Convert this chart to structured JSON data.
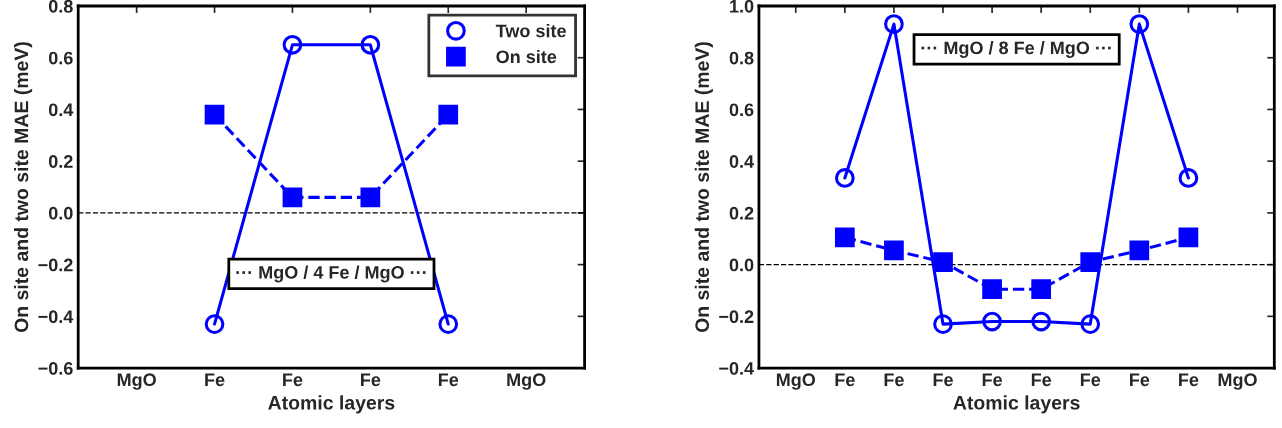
{
  "chart_data": [
    {
      "type": "line",
      "xlabel": "Atomic layers",
      "ylabel": "On site and two site MAE (meV)",
      "categories": [
        "MgO",
        "Fe",
        "Fe",
        "Fe",
        "Fe",
        "MgO"
      ],
      "series": [
        {
          "name": "Two site",
          "color": "#0000ff",
          "values": [
            null,
            -0.43,
            0.65,
            0.65,
            -0.43,
            null
          ],
          "marker": "circle",
          "line_style": "solid"
        },
        {
          "name": "On site",
          "color": "#0000ff",
          "values": [
            null,
            0.38,
            0.06,
            0.06,
            0.38,
            null
          ],
          "marker": "square",
          "line_style": "dashed"
        }
      ],
      "ylim": [
        -0.6,
        0.8
      ],
      "yticks": [
        {
          "value": -0.6,
          "label": "−0.6"
        },
        {
          "value": -0.4,
          "label": "−0.4"
        },
        {
          "value": -0.2,
          "label": "−0.2"
        },
        {
          "value": 0,
          "label": "0.0"
        },
        {
          "value": 0.2,
          "label": "0.2"
        },
        {
          "value": 0.4,
          "label": "0.4"
        },
        {
          "value": 0.6,
          "label": "0.6"
        },
        {
          "value": 0.8,
          "label": "0.8"
        }
      ],
      "ref_lines": [
        {
          "axis": "y",
          "value": 0,
          "color": "#000000",
          "line_style": "dashed"
        }
      ],
      "annotations": [
        "··· MgO / 4 Fe / MgO ···"
      ],
      "legend": "top right",
      "grid": false
    },
    {
      "type": "line",
      "xlabel": "Atomic layers",
      "ylabel": "On site and two site MAE (meV)",
      "categories": [
        "MgO",
        "Fe",
        "Fe",
        "Fe",
        "Fe",
        "Fe",
        "Fe",
        "Fe",
        "Fe",
        "MgO"
      ],
      "series": [
        {
          "color": "#0000ff",
          "values": [
            null,
            0.335,
            0.93,
            -0.23,
            -0.22,
            -0.22,
            -0.23,
            0.93,
            0.335,
            null
          ],
          "marker": "circle",
          "line_style": "solid"
        },
        {
          "color": "#0000ff",
          "values": [
            null,
            0.105,
            0.055,
            0.01,
            -0.095,
            -0.095,
            0.01,
            0.055,
            0.105,
            null
          ],
          "marker": "square",
          "line_style": "dashed"
        }
      ],
      "ylim": [
        -0.4,
        1.0
      ],
      "yticks": [
        {
          "value": -0.4,
          "label": "−0.4"
        },
        {
          "value": -0.2,
          "label": "−0.2"
        },
        {
          "value": 0,
          "label": "0.0"
        },
        {
          "value": 0.2,
          "label": "0.2"
        },
        {
          "value": 0.4,
          "label": "0.4"
        },
        {
          "value": 0.6,
          "label": "0.6"
        },
        {
          "value": 0.8,
          "label": "0.8"
        },
        {
          "value": 1.0,
          "label": "1.0"
        }
      ],
      "ref_lines": [
        {
          "axis": "y",
          "value": 0,
          "color": "#000000",
          "line_style": "dashed"
        }
      ],
      "annotations": [
        "··· MgO / 8 Fe / MgO ···"
      ],
      "grid": false
    }
  ]
}
